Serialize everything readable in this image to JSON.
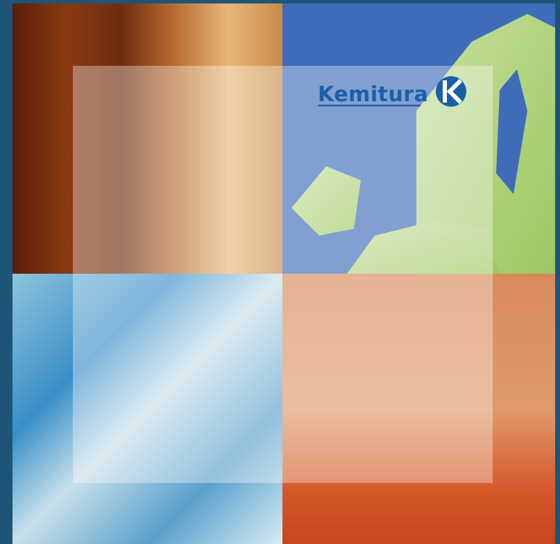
{
  "brand": {
    "name": "Kemitura"
  }
}
